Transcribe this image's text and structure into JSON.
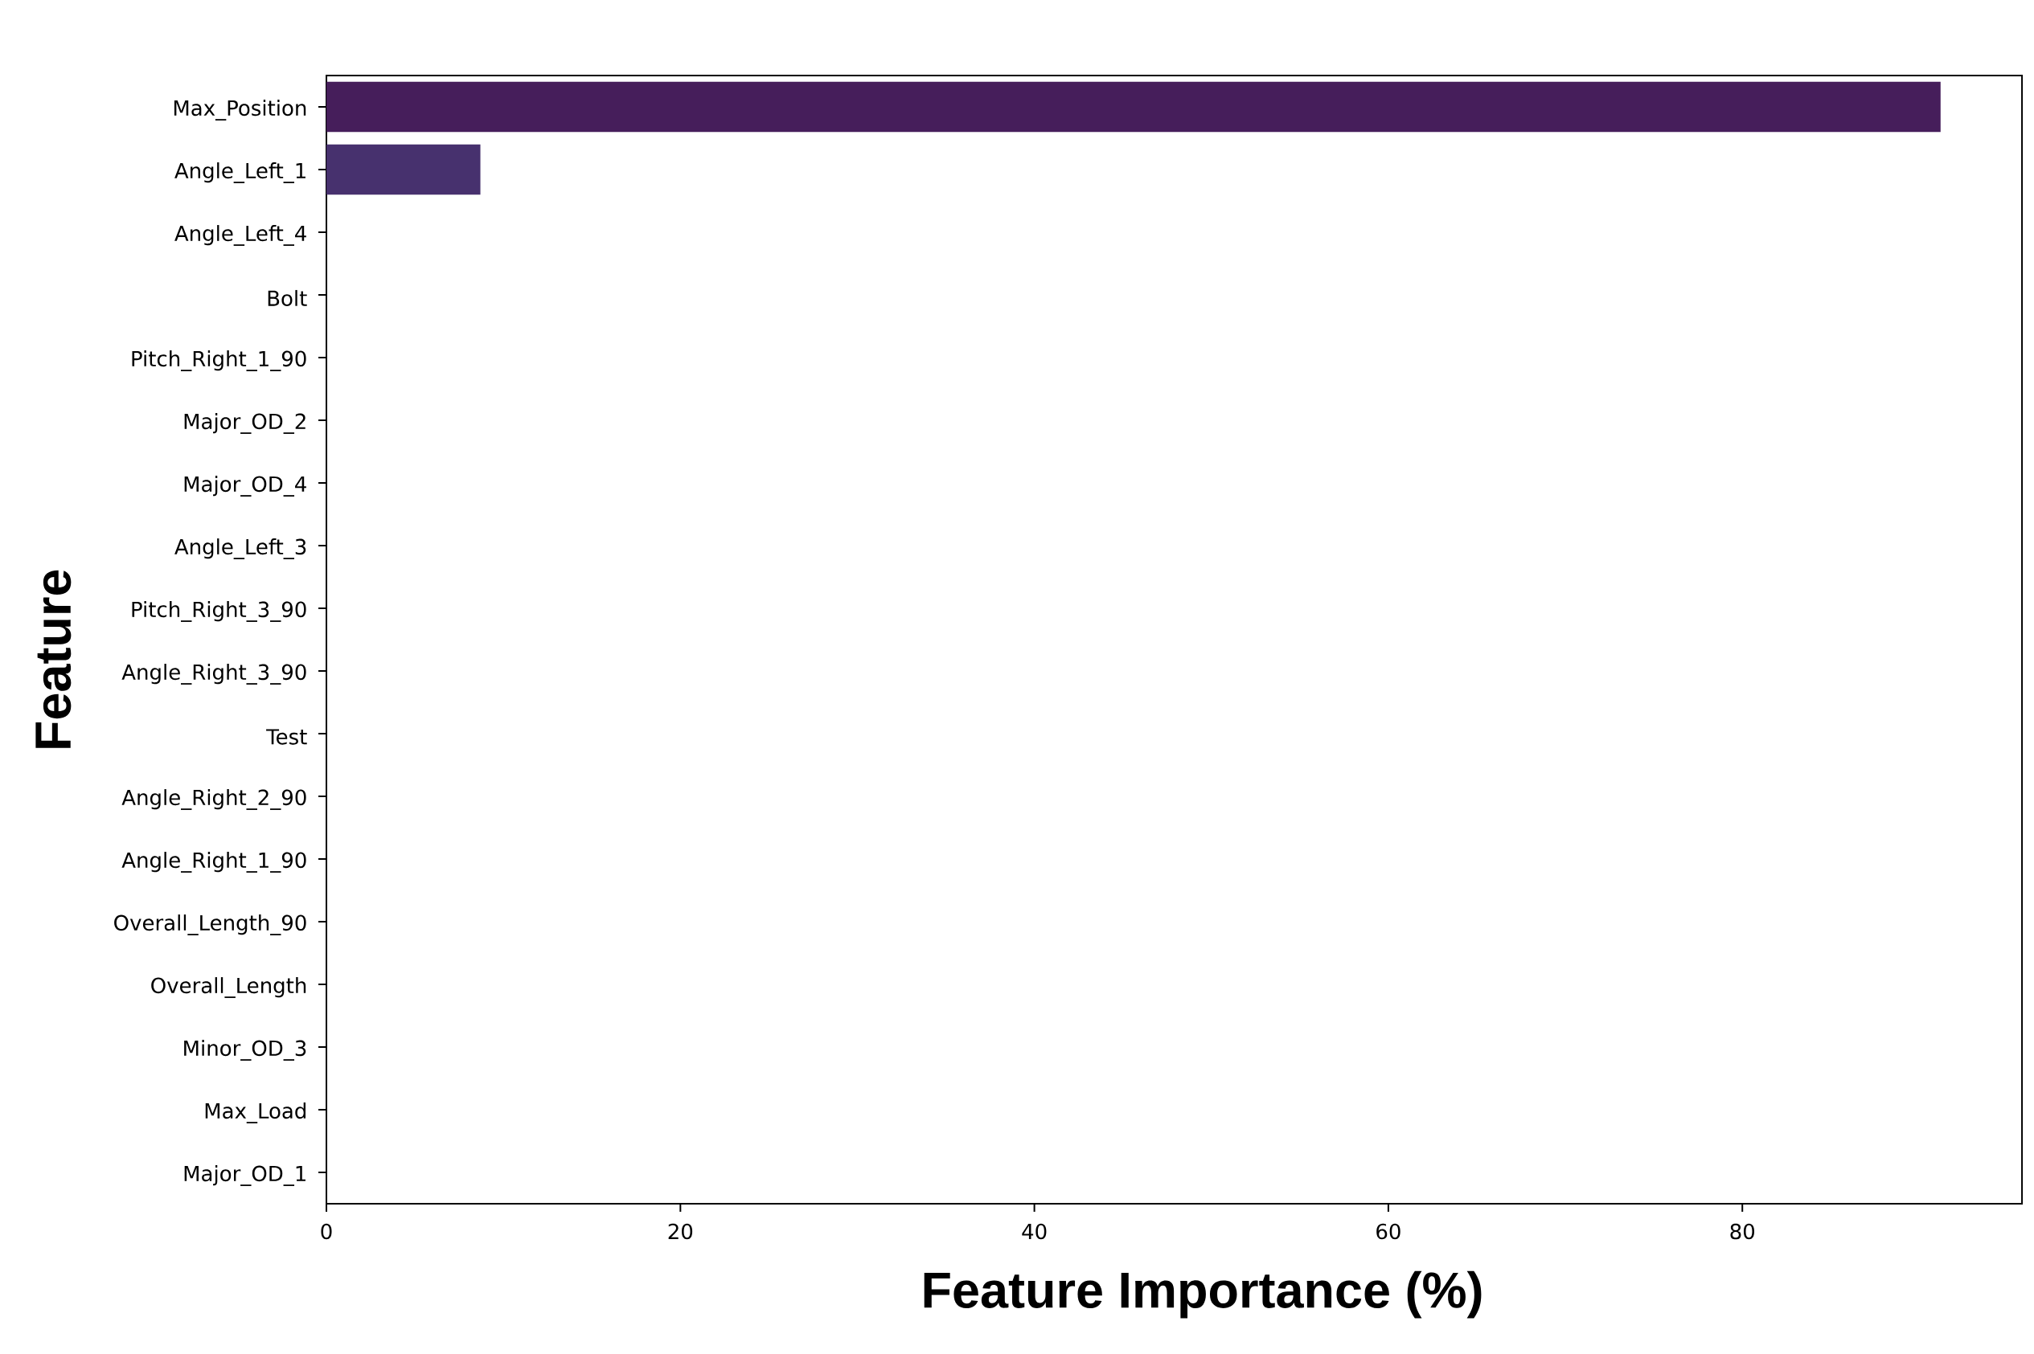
{
  "chart_data": {
    "type": "bar",
    "orientation": "horizontal",
    "xlabel": "Feature Importance (%)",
    "ylabel": "Feature",
    "categories": [
      "Max_Position",
      "Angle_Left_1",
      "Angle_Left_4",
      "Bolt",
      "Pitch_Right_1_90",
      "Major_OD_2",
      "Major_OD_4",
      "Angle_Left_3",
      "Pitch_Right_3_90",
      "Angle_Right_3_90",
      "Test",
      "Angle_Right_2_90",
      "Angle_Right_1_90",
      "Overall_Length_90",
      "Overall_Length",
      "Minor_OD_3",
      "Max_Load",
      "Major_OD_1"
    ],
    "values": [
      91.2,
      8.7,
      0,
      0,
      0,
      0,
      0,
      0,
      0,
      0,
      0,
      0,
      0,
      0,
      0,
      0,
      0,
      0
    ],
    "colors": [
      "#461e5b",
      "#47316e",
      null,
      null,
      null,
      null,
      null,
      null,
      null,
      null,
      null,
      null,
      null,
      null,
      null,
      null,
      null,
      null
    ],
    "xlim": [
      0,
      95.8
    ],
    "xticks": [
      0,
      20,
      40,
      60,
      80
    ]
  }
}
